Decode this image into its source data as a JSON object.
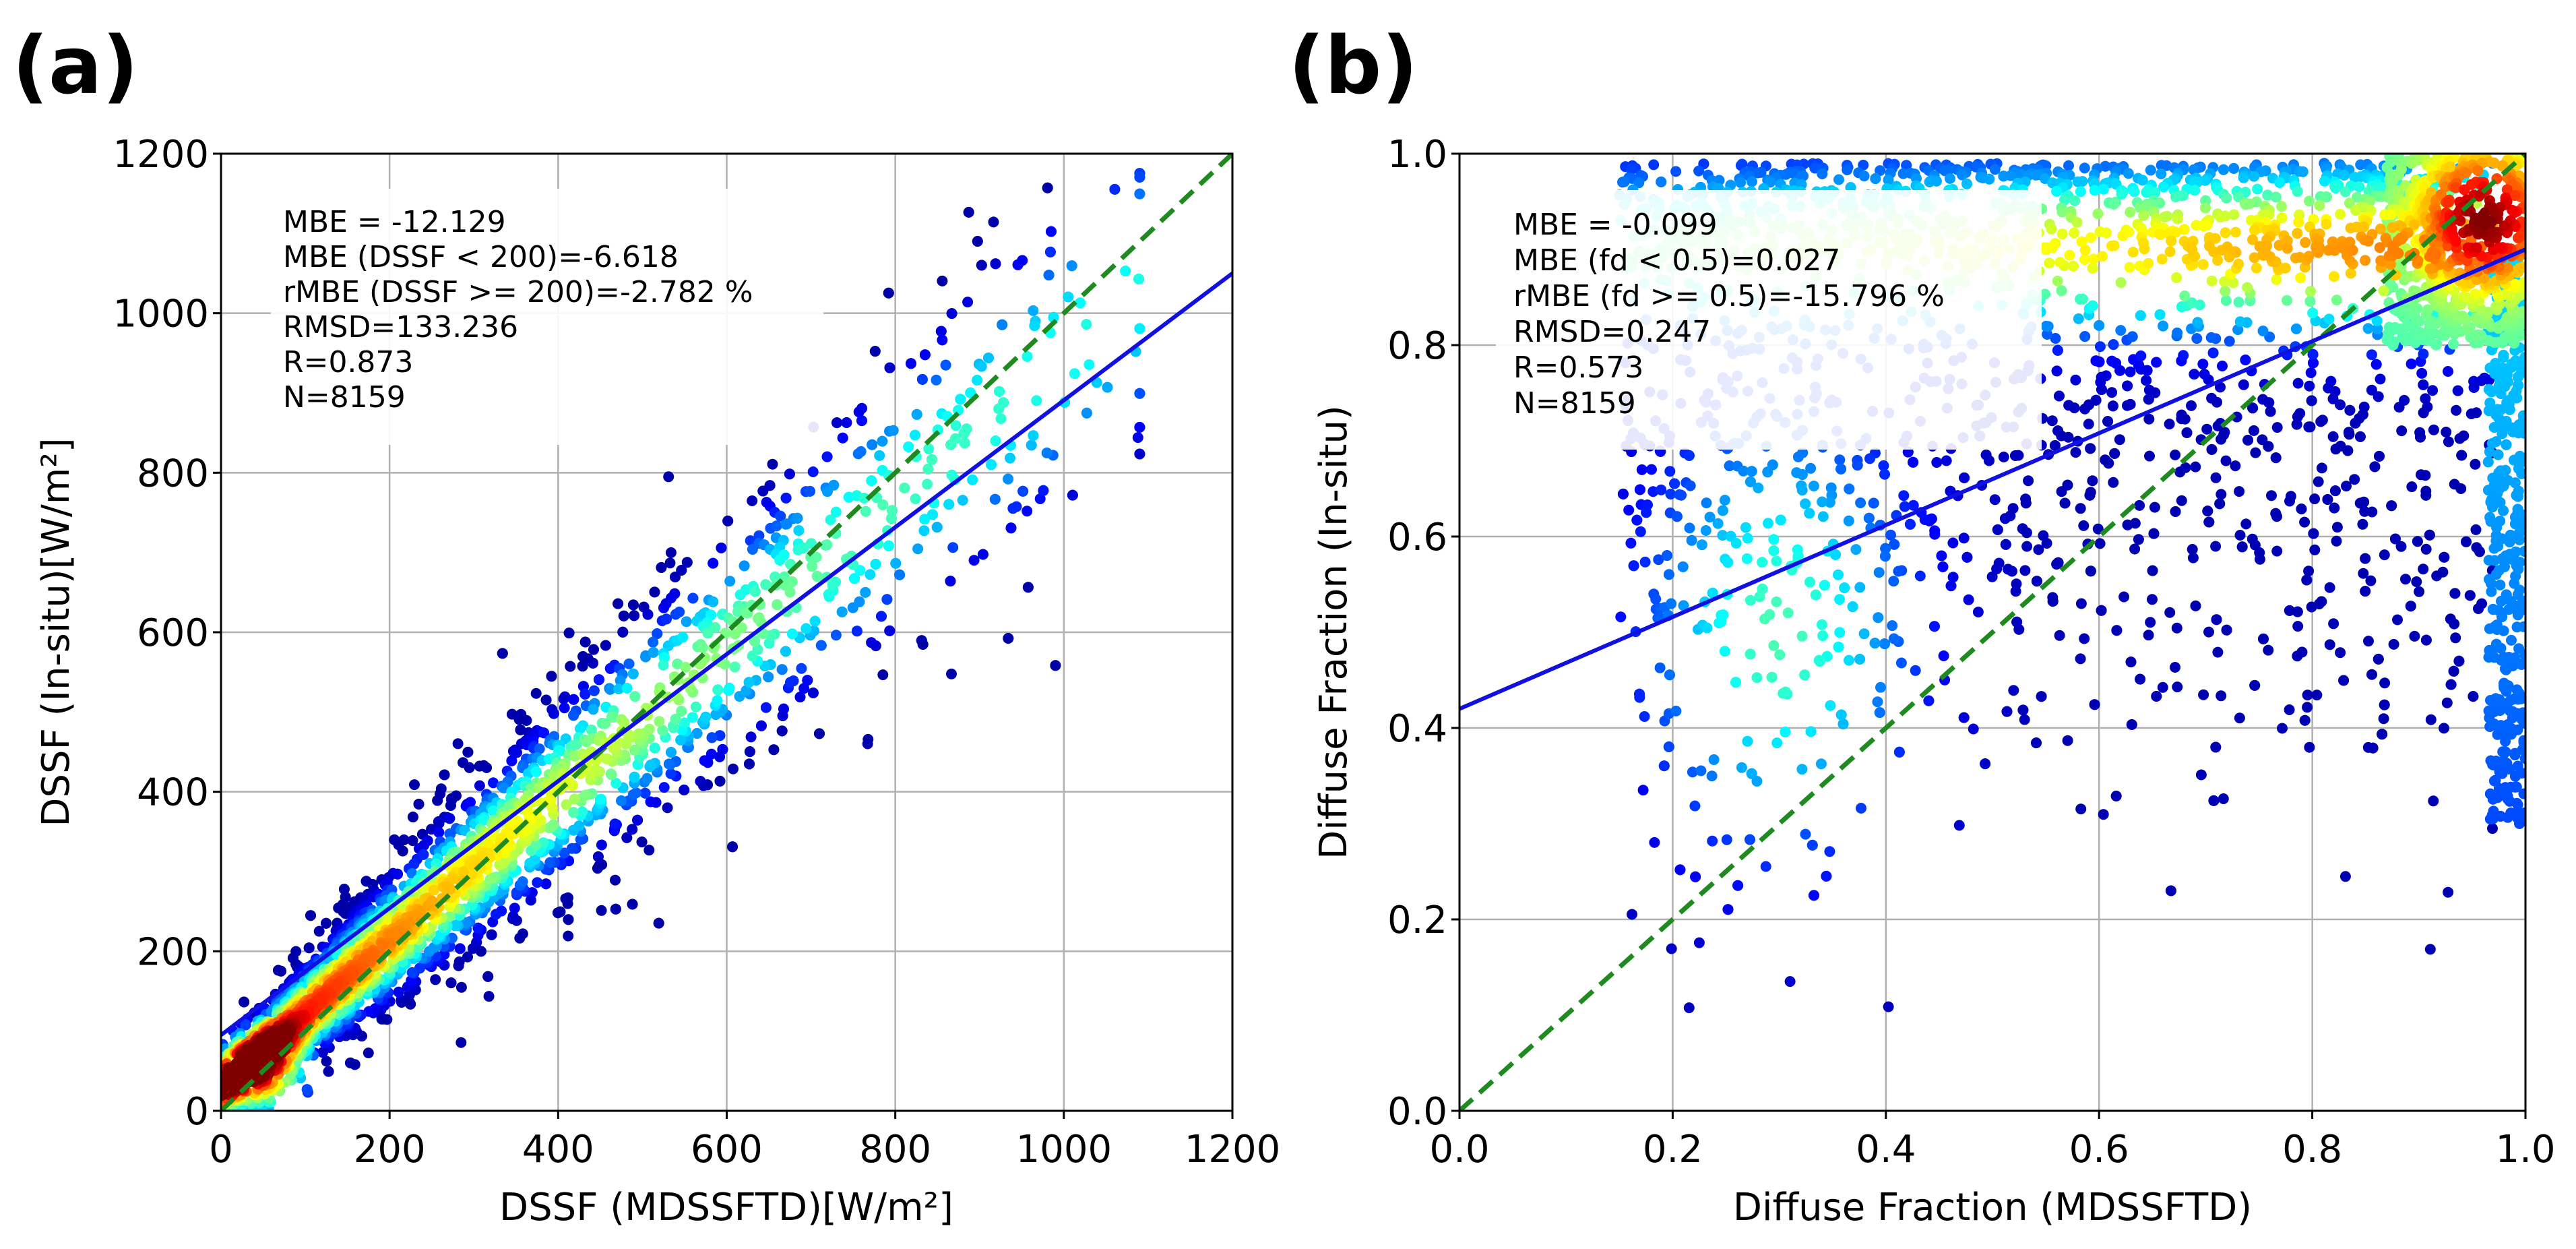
{
  "chart_data": [
    {
      "type": "scatter",
      "panel_label": "(a)",
      "xlabel": "DSSF (MDSSFTD)[W/m²]",
      "ylabel": "DSSF (In-situ)[W/m²]",
      "xlim": [
        0,
        1200
      ],
      "ylim": [
        0,
        1200
      ],
      "xticks": [
        0,
        200,
        400,
        600,
        800,
        1000,
        1200
      ],
      "yticks": [
        0,
        200,
        400,
        600,
        800,
        1000,
        1200
      ],
      "xtick_labels": [
        "0",
        "200",
        "400",
        "600",
        "800",
        "1000",
        "1200"
      ],
      "ytick_labels": [
        "0",
        "200",
        "400",
        "600",
        "800",
        "1000",
        "1200"
      ],
      "grid": true,
      "stats": [
        "MBE = -12.129",
        "MBE (DSSF < 200)=-6.618",
        "rMBE (DSSF >= 200)=-2.782 %",
        "RMSD=133.236",
        "R=0.873",
        "N=8159"
      ],
      "series": [
        {
          "name": "1:1 line",
          "style": "dashed",
          "color": "#1f8a1f",
          "x": [
            0,
            1200
          ],
          "y": [
            0,
            1200
          ]
        },
        {
          "name": "regression fit",
          "style": "solid",
          "color": "#1010e0",
          "x": [
            0,
            1200
          ],
          "y": [
            95,
            1050
          ]
        },
        {
          "name": "observations",
          "style": "density-scatter",
          "n": 8159,
          "colormap": "jet",
          "description_fit": {
            "slope": 0.8,
            "intercept": 95
          }
        }
      ]
    },
    {
      "type": "scatter",
      "panel_label": "(b)",
      "xlabel": "Diffuse Fraction (MDSSFTD)",
      "ylabel": "Diffuse Fraction (In-situ)",
      "xlim": [
        0.0,
        1.0
      ],
      "ylim": [
        0.0,
        1.0
      ],
      "xticks": [
        0.0,
        0.2,
        0.4,
        0.6,
        0.8,
        1.0
      ],
      "yticks": [
        0.0,
        0.2,
        0.4,
        0.6,
        0.8,
        1.0
      ],
      "xtick_labels": [
        "0.0",
        "0.2",
        "0.4",
        "0.6",
        "0.8",
        "1.0"
      ],
      "ytick_labels": [
        "0.0",
        "0.2",
        "0.4",
        "0.6",
        "0.8",
        "1.0"
      ],
      "grid": true,
      "stats": [
        "MBE = -0.099",
        "MBE (fd < 0.5)=0.027",
        "rMBE (fd >= 0.5)=-15.796 %",
        "RMSD=0.247",
        "R=0.573",
        "N=8159"
      ],
      "series": [
        {
          "name": "1:1 line",
          "style": "dashed",
          "color": "#1f8a1f",
          "x": [
            0.0,
            1.0
          ],
          "y": [
            0.0,
            1.0
          ]
        },
        {
          "name": "regression fit",
          "style": "solid",
          "color": "#1010e0",
          "x": [
            0.0,
            1.0
          ],
          "y": [
            0.42,
            0.9
          ]
        },
        {
          "name": "observations",
          "style": "density-scatter",
          "n": 8159,
          "colormap": "jet"
        }
      ]
    }
  ]
}
